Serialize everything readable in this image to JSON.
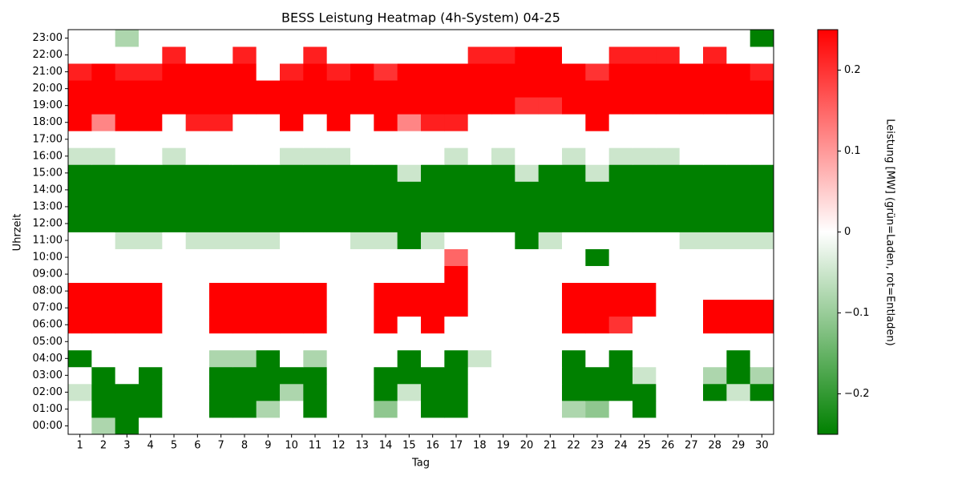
{
  "chart_data": {
    "type": "heatmap",
    "title": "BESS Leistung Heatmap (4h-System) 04-25",
    "x_label": "Tag",
    "y_label": "Uhrzeit",
    "colorbar_label": "Leistung [MW] (grün=Laden, rot=Entladen)",
    "categories": [
      "1",
      "2",
      "3",
      "4",
      "5",
      "6",
      "7",
      "8",
      "9",
      "10",
      "11",
      "12",
      "13",
      "14",
      "15",
      "16",
      "17",
      "18",
      "19",
      "20",
      "21",
      "22",
      "23",
      "24",
      "25",
      "26",
      "27",
      "28",
      "29",
      "30"
    ],
    "rows": [
      "00:00",
      "01:00",
      "02:00",
      "03:00",
      "04:00",
      "05:00",
      "06:00",
      "07:00",
      "08:00",
      "09:00",
      "10:00",
      "11:00",
      "12:00",
      "13:00",
      "14:00",
      "15:00",
      "16:00",
      "17:00",
      "18:00",
      "19:00",
      "20:00",
      "21:00",
      "22:00",
      "23:00"
    ],
    "values": [
      [
        0,
        -0.08,
        -0.25,
        0,
        0,
        0,
        0,
        0,
        0,
        0,
        0,
        0,
        0,
        0,
        0,
        0,
        0,
        0,
        0,
        0,
        0,
        0,
        0,
        0,
        0,
        0,
        0,
        0,
        0,
        0
      ],
      [
        0,
        -0.25,
        -0.25,
        -0.25,
        0,
        0,
        -0.25,
        -0.25,
        -0.08,
        0,
        -0.25,
        0,
        0,
        -0.11,
        0,
        -0.25,
        -0.25,
        0,
        0,
        0,
        0,
        -0.08,
        -0.11,
        0,
        -0.25,
        0,
        0,
        0,
        0,
        0
      ],
      [
        -0.05,
        -0.25,
        -0.25,
        -0.25,
        0,
        0,
        -0.25,
        -0.25,
        -0.25,
        -0.08,
        -0.25,
        0,
        0,
        -0.25,
        -0.05,
        -0.25,
        -0.25,
        0,
        0,
        0,
        0,
        -0.25,
        -0.25,
        -0.25,
        -0.25,
        0,
        0,
        -0.25,
        -0.05,
        -0.25
      ],
      [
        0,
        -0.25,
        0,
        -0.25,
        0,
        0,
        -0.25,
        -0.25,
        -0.25,
        -0.25,
        -0.25,
        0,
        0,
        -0.25,
        -0.25,
        -0.25,
        -0.25,
        0,
        0,
        0,
        0,
        -0.25,
        -0.25,
        -0.25,
        -0.05,
        0,
        0,
        -0.08,
        -0.25,
        -0.08
      ],
      [
        -0.25,
        0,
        0,
        0,
        0,
        0,
        -0.08,
        -0.08,
        -0.25,
        0,
        -0.08,
        0,
        0,
        0,
        -0.25,
        0,
        -0.25,
        -0.05,
        0,
        0,
        0,
        -0.25,
        0,
        -0.25,
        0,
        0,
        0,
        0,
        -0.25,
        0
      ],
      [
        0,
        0,
        0,
        0,
        0,
        0,
        0,
        0,
        0,
        0,
        0,
        0,
        0,
        0,
        0,
        0,
        0,
        0,
        0,
        0,
        0,
        0,
        0,
        0,
        0,
        0,
        0,
        0,
        0,
        0
      ],
      [
        0.25,
        0.25,
        0.25,
        0.25,
        0,
        0,
        0.25,
        0.25,
        0.25,
        0.25,
        0.25,
        0,
        0,
        0.25,
        0,
        0.25,
        0,
        0,
        0,
        0,
        0,
        0.25,
        0.25,
        0.2,
        0,
        0,
        0,
        0.25,
        0.25,
        0.25
      ],
      [
        0.25,
        0.25,
        0.25,
        0.25,
        0,
        0,
        0.25,
        0.25,
        0.25,
        0.25,
        0.25,
        0,
        0,
        0.25,
        0.25,
        0.25,
        0.25,
        0,
        0,
        0,
        0,
        0.25,
        0.25,
        0.25,
        0.25,
        0,
        0,
        0.25,
        0.25,
        0.25
      ],
      [
        0.25,
        0.25,
        0.25,
        0.25,
        0,
        0,
        0.25,
        0.25,
        0.25,
        0.25,
        0.25,
        0,
        0,
        0.25,
        0.25,
        0.25,
        0.25,
        0,
        0,
        0,
        0,
        0.25,
        0.25,
        0.25,
        0.25,
        0,
        0,
        0,
        0,
        0
      ],
      [
        0,
        0,
        0,
        0,
        0,
        0,
        0,
        0,
        0,
        0,
        0,
        0,
        0,
        0,
        0,
        0,
        0.25,
        0,
        0,
        0,
        0,
        0,
        0,
        0,
        0,
        0,
        0,
        0,
        0,
        0
      ],
      [
        0,
        0,
        0,
        0,
        0,
        0,
        0,
        0,
        0,
        0,
        0,
        0,
        0,
        0,
        0,
        0,
        0.15,
        0,
        0,
        0,
        0,
        0,
        -0.25,
        0,
        0,
        0,
        0,
        0,
        0,
        0
      ],
      [
        0,
        0,
        -0.05,
        -0.05,
        0,
        -0.05,
        -0.05,
        -0.05,
        -0.05,
        0,
        0,
        0,
        -0.05,
        -0.05,
        -0.25,
        -0.05,
        0,
        0,
        0,
        -0.25,
        -0.05,
        0,
        0,
        0,
        0,
        0,
        -0.05,
        -0.05,
        -0.05,
        -0.05
      ],
      [
        -0.25,
        -0.25,
        -0.25,
        -0.25,
        -0.25,
        -0.25,
        -0.25,
        -0.25,
        -0.25,
        -0.25,
        -0.25,
        -0.25,
        -0.25,
        -0.25,
        -0.25,
        -0.25,
        -0.25,
        -0.25,
        -0.25,
        -0.25,
        -0.25,
        -0.25,
        -0.25,
        -0.25,
        -0.25,
        -0.25,
        -0.25,
        -0.25,
        -0.25,
        -0.25
      ],
      [
        -0.25,
        -0.25,
        -0.25,
        -0.25,
        -0.25,
        -0.25,
        -0.25,
        -0.25,
        -0.25,
        -0.25,
        -0.25,
        -0.25,
        -0.25,
        -0.25,
        -0.25,
        -0.25,
        -0.25,
        -0.25,
        -0.25,
        -0.25,
        -0.25,
        -0.25,
        -0.25,
        -0.25,
        -0.25,
        -0.25,
        -0.25,
        -0.25,
        -0.25,
        -0.25
      ],
      [
        -0.25,
        -0.25,
        -0.25,
        -0.25,
        -0.25,
        -0.25,
        -0.25,
        -0.25,
        -0.25,
        -0.25,
        -0.25,
        -0.25,
        -0.25,
        -0.25,
        -0.25,
        -0.25,
        -0.25,
        -0.25,
        -0.25,
        -0.25,
        -0.25,
        -0.25,
        -0.25,
        -0.25,
        -0.25,
        -0.25,
        -0.25,
        -0.25,
        -0.25,
        -0.25
      ],
      [
        -0.25,
        -0.25,
        -0.25,
        -0.25,
        -0.25,
        -0.25,
        -0.25,
        -0.25,
        -0.25,
        -0.25,
        -0.25,
        -0.25,
        -0.25,
        -0.25,
        -0.05,
        -0.25,
        -0.25,
        -0.25,
        -0.25,
        -0.05,
        -0.25,
        -0.25,
        -0.05,
        -0.25,
        -0.25,
        -0.25,
        -0.25,
        -0.25,
        -0.25,
        -0.25
      ],
      [
        -0.05,
        -0.05,
        0,
        0,
        -0.05,
        0,
        0,
        0,
        0,
        -0.05,
        -0.05,
        -0.05,
        0,
        0,
        0,
        0,
        -0.05,
        0,
        -0.05,
        0,
        0,
        -0.05,
        0,
        -0.05,
        -0.05,
        -0.05,
        0,
        0,
        0,
        0
      ],
      [
        0,
        0,
        0,
        0,
        0,
        0,
        0,
        0,
        0,
        0,
        0,
        0,
        0,
        0,
        0,
        0,
        0,
        0,
        0,
        0,
        0,
        0,
        0,
        0,
        0,
        0,
        0,
        0,
        0,
        0
      ],
      [
        0.25,
        0.12,
        0.25,
        0.25,
        0,
        0.22,
        0.22,
        0,
        0,
        0.25,
        0,
        0.25,
        0,
        0.25,
        0.12,
        0.22,
        0.22,
        0,
        0,
        0,
        0,
        0,
        0.25,
        0,
        0,
        0,
        0,
        0,
        0,
        0
      ],
      [
        0.25,
        0.25,
        0.25,
        0.25,
        0.25,
        0.25,
        0.25,
        0.25,
        0.25,
        0.25,
        0.25,
        0.25,
        0.25,
        0.25,
        0.25,
        0.25,
        0.25,
        0.25,
        0.25,
        0.2,
        0.2,
        0.25,
        0.25,
        0.25,
        0.25,
        0.25,
        0.25,
        0.25,
        0.25,
        0.25
      ],
      [
        0.25,
        0.25,
        0.25,
        0.25,
        0.25,
        0.25,
        0.25,
        0.25,
        0.25,
        0.25,
        0.25,
        0.25,
        0.25,
        0.25,
        0.25,
        0.25,
        0.25,
        0.25,
        0.25,
        0.25,
        0.25,
        0.25,
        0.25,
        0.25,
        0.25,
        0.25,
        0.25,
        0.25,
        0.25,
        0.25
      ],
      [
        0.22,
        0.25,
        0.22,
        0.22,
        0.25,
        0.25,
        0.25,
        0.25,
        0,
        0.22,
        0.25,
        0.22,
        0.25,
        0.2,
        0.25,
        0.25,
        0.25,
        0.25,
        0.25,
        0.25,
        0.25,
        0.25,
        0.2,
        0.25,
        0.25,
        0.25,
        0.25,
        0.25,
        0.25,
        0.22
      ],
      [
        0,
        0,
        0,
        0,
        0.22,
        0,
        0,
        0.22,
        0,
        0,
        0.22,
        0,
        0,
        0,
        0,
        0,
        0,
        0.22,
        0.22,
        0.25,
        0.25,
        0,
        0,
        0.22,
        0.22,
        0.22,
        0,
        0.22,
        0,
        0
      ],
      [
        0,
        0,
        -0.08,
        0,
        0,
        0,
        0,
        0,
        0,
        0,
        0,
        0,
        0,
        0,
        0,
        0,
        0,
        0,
        0,
        0,
        0,
        0,
        0,
        0,
        0,
        0,
        0,
        0,
        0,
        -0.25
      ]
    ],
    "colormap": [
      "#008000",
      "#ffffff",
      "#ff0000"
    ],
    "clim": [
      -0.25,
      0.25
    ],
    "cticks": [
      {
        "value": -0.2,
        "label": "−0.2"
      },
      {
        "value": -0.1,
        "label": "−0.1"
      },
      0.0,
      0.1,
      0.2
    ]
  }
}
